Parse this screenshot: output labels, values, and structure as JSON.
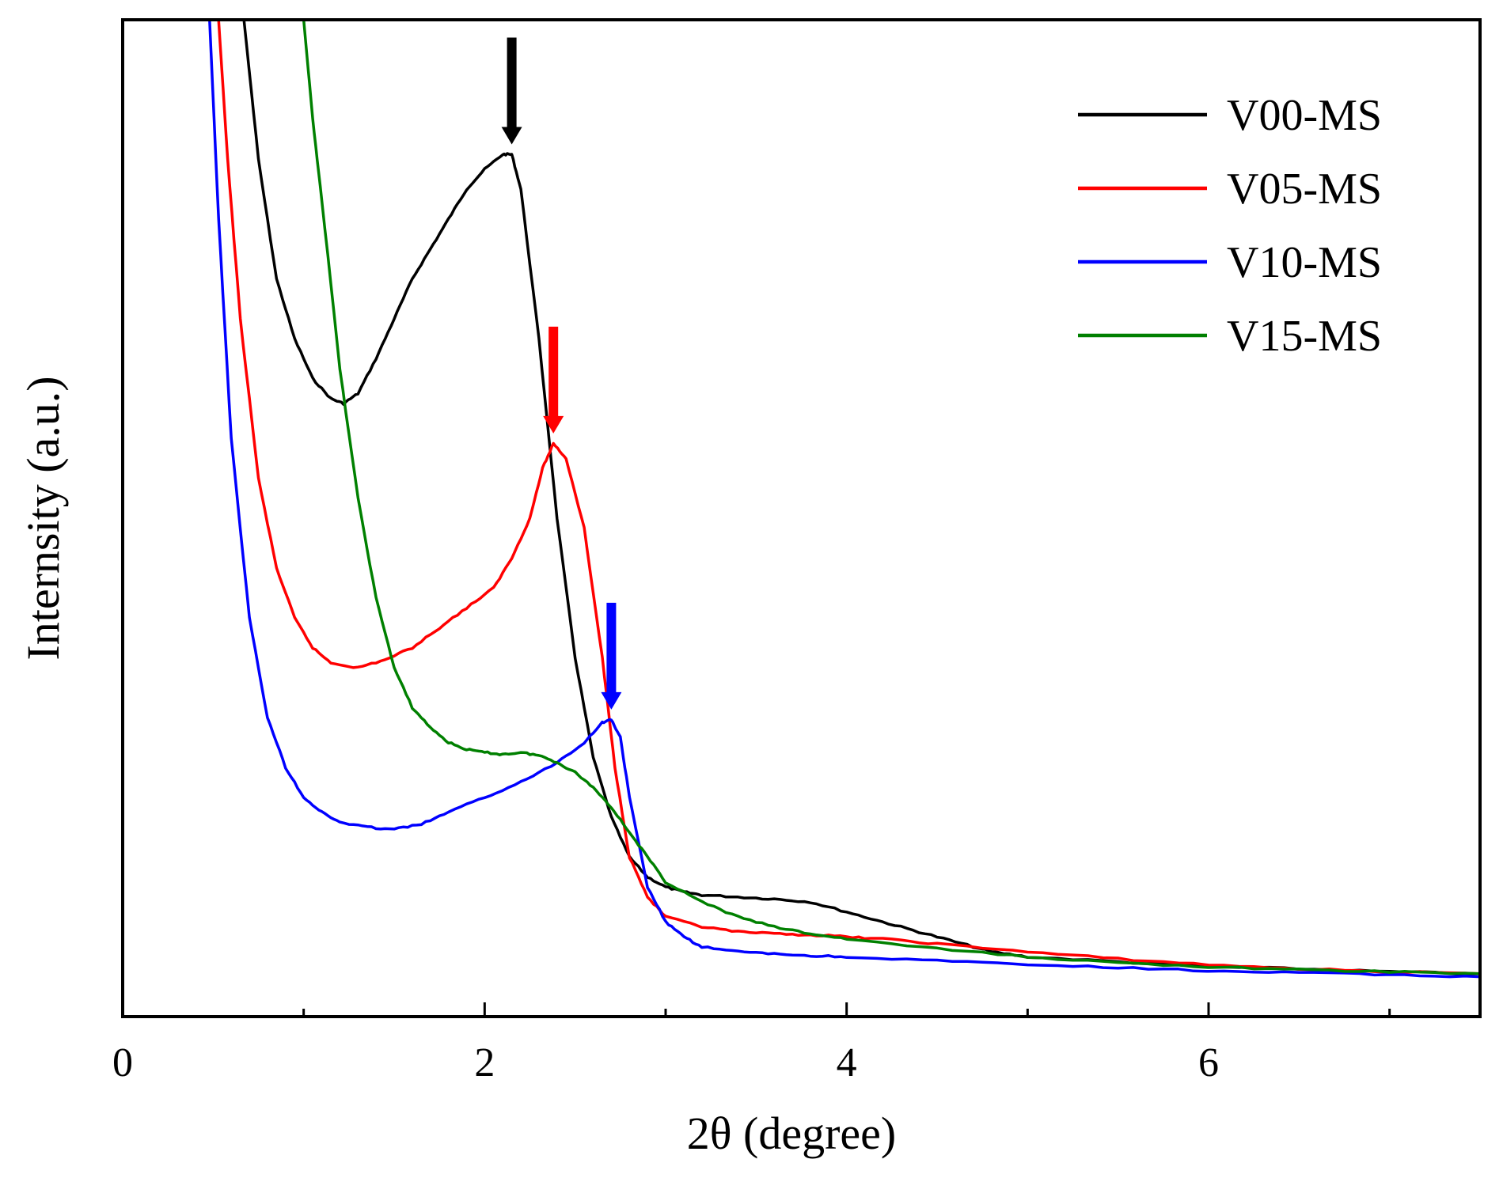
{
  "chart_data": {
    "type": "line",
    "xlabel": "2θ  (degree)",
    "ylabel": "Internsity  (a.u.)",
    "xlim": [
      0,
      7.5
    ],
    "ylim": [
      0,
      100
    ],
    "x_ticks": [
      0,
      2,
      4,
      6
    ],
    "x_minor_ticks": [
      1,
      3,
      5,
      7
    ],
    "y_tick_labels": false,
    "grid": false,
    "legend_position": "top-right",
    "series": [
      {
        "name": "V00-MS",
        "color": "#000000",
        "x": [
          0.67,
          0.75,
          0.85,
          0.95,
          1.05,
          1.15,
          1.22,
          1.3,
          1.4,
          1.5,
          1.6,
          1.7,
          1.8,
          1.9,
          2.0,
          2.1,
          2.15,
          2.2,
          2.3,
          2.4,
          2.5,
          2.6,
          2.7,
          2.8,
          2.9,
          3.0,
          3.1,
          3.2,
          3.4,
          3.6,
          3.8,
          4.0,
          4.2,
          4.4,
          4.6,
          4.8,
          5.0,
          5.5,
          6.0,
          6.5,
          7.0,
          7.5
        ],
        "y": [
          100,
          86,
          74,
          68,
          64,
          62,
          61.5,
          62.5,
          66,
          70,
          74,
          77,
          80,
          83,
          85,
          86.5,
          86.5,
          83,
          68,
          50,
          36,
          26,
          20,
          16,
          14,
          13,
          12.5,
          12.2,
          12.0,
          11.8,
          11.5,
          10.5,
          9.5,
          8.5,
          7.5,
          6.5,
          6.0,
          5.5,
          5.0,
          4.8,
          4.5,
          4.3
        ]
      },
      {
        "name": "V05-MS",
        "color": "#ff0000",
        "x": [
          0.53,
          0.58,
          0.65,
          0.75,
          0.85,
          0.95,
          1.05,
          1.15,
          1.3,
          1.45,
          1.6,
          1.75,
          1.9,
          2.05,
          2.15,
          2.25,
          2.32,
          2.38,
          2.45,
          2.55,
          2.65,
          2.72,
          2.8,
          2.9,
          3.0,
          3.2,
          3.4,
          3.6,
          3.8,
          4.0,
          4.2,
          4.5,
          5.0,
          5.5,
          6.0,
          6.5,
          7.0,
          7.5
        ],
        "y": [
          100,
          86,
          70,
          54,
          45,
          40,
          37,
          35.5,
          35,
          35.8,
          37,
          39,
          41,
          43,
          46,
          50,
          55,
          57.5,
          56,
          49,
          36,
          25,
          16,
          12,
          10,
          9,
          8.5,
          8.3,
          8.2,
          8.0,
          7.8,
          7.3,
          6.5,
          5.8,
          5.2,
          4.8,
          4.5,
          4.3
        ]
      },
      {
        "name": "V10-MS",
        "color": "#0000ff",
        "x": [
          0.48,
          0.53,
          0.6,
          0.7,
          0.8,
          0.9,
          1.0,
          1.1,
          1.2,
          1.35,
          1.5,
          1.65,
          1.8,
          2.0,
          2.2,
          2.4,
          2.55,
          2.65,
          2.7,
          2.75,
          2.8,
          2.9,
          3.0,
          3.1,
          3.2,
          3.4,
          3.6,
          3.8,
          4.0,
          4.5,
          5.0,
          5.5,
          6.0,
          6.5,
          7.0,
          7.5
        ],
        "y": [
          100,
          80,
          58,
          40,
          30,
          25,
          22,
          20.5,
          19.5,
          19,
          18.8,
          19.3,
          20.5,
          22,
          23.5,
          25.5,
          27.5,
          29.5,
          29.8,
          28,
          22,
          13,
          9.5,
          8.0,
          7.0,
          6.5,
          6.3,
          6.1,
          6.0,
          5.6,
          5.2,
          4.9,
          4.6,
          4.4,
          4.2,
          4.0
        ]
      },
      {
        "name": "V15-MS",
        "color": "#008000",
        "x": [
          1.0,
          1.05,
          1.1,
          1.2,
          1.3,
          1.4,
          1.5,
          1.6,
          1.7,
          1.8,
          1.9,
          2.0,
          2.1,
          2.2,
          2.3,
          2.4,
          2.5,
          2.6,
          2.7,
          2.8,
          2.9,
          3.0,
          3.2,
          3.4,
          3.6,
          3.8,
          4.0,
          4.5,
          5.0,
          5.5,
          6.0,
          6.5,
          7.0,
          7.5
        ],
        "y": [
          100,
          90,
          82,
          65,
          52,
          42,
          35,
          31,
          29,
          27.5,
          26.8,
          26.5,
          26.3,
          26.5,
          26.2,
          25.5,
          24.5,
          23,
          21,
          18.5,
          16,
          13.5,
          11.5,
          10,
          9,
          8.3,
          7.8,
          6.8,
          6.0,
          5.4,
          5.0,
          4.7,
          4.5,
          4.3
        ]
      }
    ],
    "annotations": [
      {
        "type": "arrow",
        "color": "#000000",
        "x": 2.15,
        "y_tip": 87.5
      },
      {
        "type": "arrow",
        "color": "#ff0000",
        "x": 2.38,
        "y_tip": 58.5
      },
      {
        "type": "arrow",
        "color": "#0000ff",
        "x": 2.7,
        "y_tip": 30.8
      }
    ]
  }
}
